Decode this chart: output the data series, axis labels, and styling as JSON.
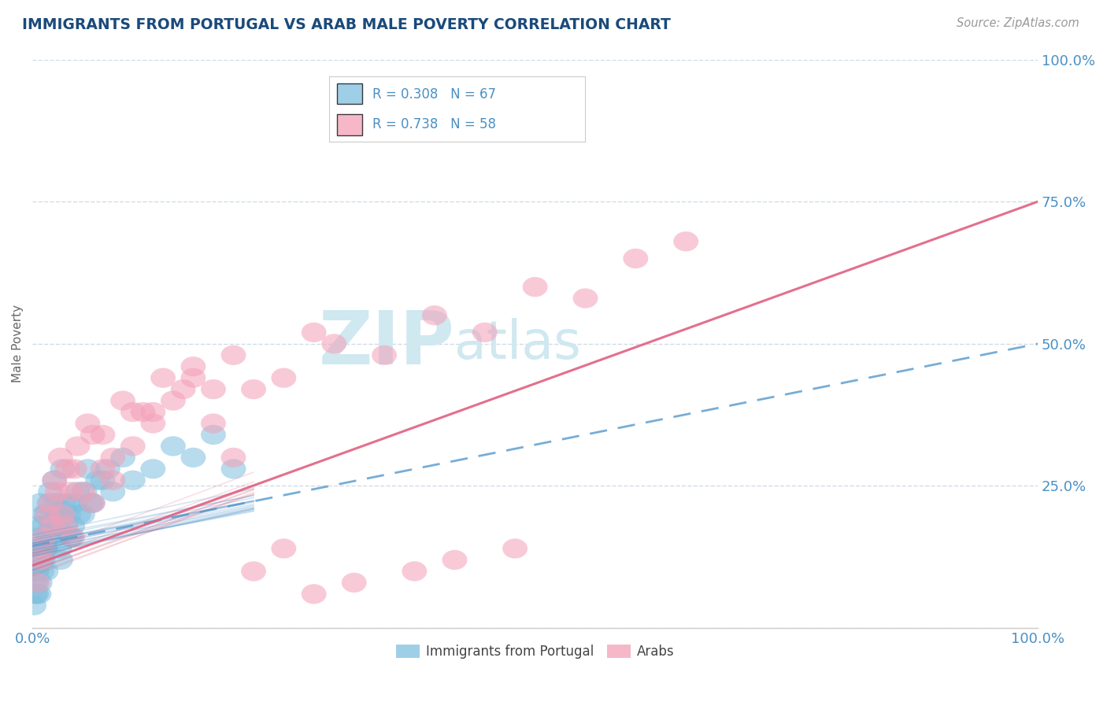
{
  "title": "IMMIGRANTS FROM PORTUGAL VS ARAB MALE POVERTY CORRELATION CHART",
  "source_text": "Source: ZipAtlas.com",
  "ylabel": "Male Poverty",
  "watermark_zip": "ZIP",
  "watermark_atlas": "atlas",
  "blue_color": "#7fbfdf",
  "pink_color": "#f4a0b8",
  "blue_line_color": "#5599cc",
  "pink_line_color": "#e06080",
  "title_color": "#1a4a7a",
  "label_color": "#4a90c4",
  "legend_text_color": "#4a90c4",
  "watermark_color": "#d0e8f0",
  "grid_color": "#d0dce8",
  "background_color": "#ffffff",
  "spine_color": "#cccccc",
  "source_color": "#999999",
  "ylabel_color": "#666666",
  "blue_scatter_x": [
    0.5,
    0.8,
    1.0,
    1.2,
    1.5,
    1.8,
    2.0,
    2.2,
    2.5,
    2.8,
    3.0,
    3.5,
    4.0,
    4.5,
    5.0,
    5.5,
    6.0,
    7.0,
    8.0,
    9.0,
    10.0,
    12.0,
    14.0,
    16.0,
    18.0,
    20.0,
    0.2,
    0.3,
    0.4,
    0.6,
    0.7,
    0.9,
    1.1,
    1.3,
    1.4,
    1.6,
    1.7,
    1.9,
    2.1,
    2.3,
    2.4,
    2.6,
    2.7,
    2.9,
    3.1,
    3.3,
    3.6,
    3.8,
    4.2,
    4.6,
    5.2,
    5.8,
    6.5,
    7.5,
    0.15,
    0.25,
    0.35,
    0.45,
    0.55,
    0.65,
    0.75,
    0.85,
    0.95,
    1.05,
    1.15,
    1.25,
    1.35
  ],
  "blue_scatter_y": [
    18.0,
    22.0,
    14.0,
    20.0,
    16.0,
    24.0,
    18.0,
    26.0,
    20.0,
    12.0,
    28.0,
    22.0,
    18.0,
    24.0,
    20.0,
    28.0,
    22.0,
    26.0,
    24.0,
    30.0,
    26.0,
    28.0,
    32.0,
    30.0,
    34.0,
    28.0,
    8.0,
    10.0,
    6.0,
    14.0,
    16.0,
    12.0,
    18.0,
    14.0,
    20.0,
    16.0,
    22.0,
    18.0,
    20.0,
    16.0,
    22.0,
    18.0,
    14.0,
    20.0,
    22.0,
    18.0,
    20.0,
    16.0,
    22.0,
    20.0,
    24.0,
    22.0,
    26.0,
    28.0,
    4.0,
    6.0,
    8.0,
    10.0,
    12.0,
    6.0,
    8.0,
    14.0,
    10.0,
    12.0,
    16.0,
    14.0,
    10.0
  ],
  "pink_scatter_x": [
    1.0,
    2.0,
    3.0,
    4.0,
    5.0,
    6.0,
    7.0,
    8.0,
    10.0,
    12.0,
    15.0,
    18.0,
    20.0,
    25.0,
    30.0,
    35.0,
    40.0,
    45.0,
    50.0,
    55.0,
    60.0,
    65.0,
    1.5,
    2.5,
    3.5,
    4.5,
    5.5,
    7.0,
    9.0,
    11.0,
    13.0,
    16.0,
    22.0,
    28.0,
    0.5,
    0.8,
    1.2,
    1.8,
    2.2,
    2.8,
    3.2,
    3.8,
    4.2,
    6.0,
    8.0,
    10.0,
    12.0,
    14.0,
    16.0,
    18.0,
    20.0,
    22.0,
    25.0,
    28.0,
    32.0,
    38.0,
    42.0,
    48.0
  ],
  "pink_scatter_y": [
    14.0,
    18.0,
    20.0,
    16.0,
    24.0,
    22.0,
    28.0,
    26.0,
    32.0,
    38.0,
    42.0,
    36.0,
    30.0,
    44.0,
    50.0,
    48.0,
    55.0,
    52.0,
    60.0,
    58.0,
    65.0,
    68.0,
    20.0,
    24.0,
    28.0,
    32.0,
    36.0,
    34.0,
    40.0,
    38.0,
    44.0,
    46.0,
    42.0,
    52.0,
    8.0,
    12.0,
    16.0,
    22.0,
    26.0,
    30.0,
    18.0,
    24.0,
    28.0,
    34.0,
    30.0,
    38.0,
    36.0,
    40.0,
    44.0,
    42.0,
    48.0,
    10.0,
    14.0,
    6.0,
    8.0,
    10.0,
    12.0,
    14.0
  ],
  "xlim": [
    0,
    100
  ],
  "ylim": [
    0,
    100
  ],
  "ytick_positions": [
    0,
    25,
    50,
    75,
    100
  ],
  "ytick_labels": [
    "",
    "25.0%",
    "50.0%",
    "75.0%",
    "100.0%"
  ],
  "xtick_positions": [
    0,
    100
  ],
  "xtick_labels": [
    "0.0%",
    "100.0%"
  ],
  "blue_reg_x0": 0,
  "blue_reg_y0": 14.5,
  "blue_reg_x1": 100,
  "blue_reg_y1": 50.0,
  "pink_reg_x0": 0,
  "pink_reg_y0": 11.0,
  "pink_reg_x1": 100,
  "pink_reg_y1": 75.0
}
